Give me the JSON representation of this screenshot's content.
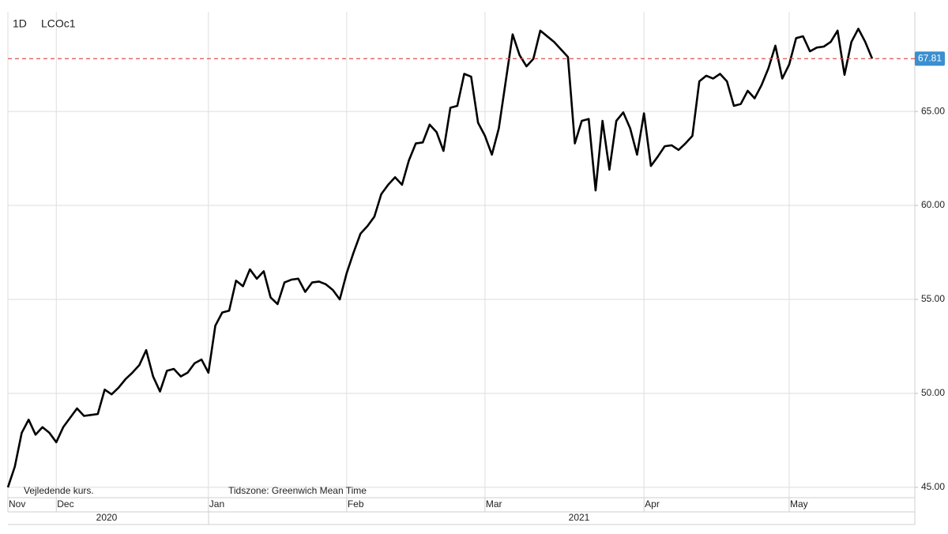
{
  "chart_data": {
    "type": "line",
    "interval": "1D",
    "symbol": "LCOc1",
    "categories": [
      "Nov",
      null,
      null,
      null,
      null,
      null,
      null,
      "Dec",
      null,
      null,
      null,
      null,
      null,
      null,
      null,
      null,
      null,
      null,
      null,
      null,
      null,
      null,
      null,
      null,
      null,
      null,
      null,
      null,
      null,
      "Jan",
      null,
      null,
      null,
      null,
      null,
      null,
      null,
      null,
      null,
      null,
      null,
      null,
      null,
      null,
      null,
      null,
      null,
      null,
      null,
      "Feb",
      null,
      null,
      null,
      null,
      null,
      null,
      null,
      null,
      null,
      null,
      null,
      null,
      null,
      null,
      null,
      null,
      null,
      null,
      null,
      "Mar",
      null,
      null,
      null,
      null,
      null,
      null,
      null,
      null,
      null,
      null,
      null,
      null,
      null,
      null,
      null,
      null,
      null,
      null,
      null,
      null,
      null,
      null,
      "Apr",
      null,
      null,
      null,
      null,
      null,
      null,
      null,
      null,
      null,
      null,
      null,
      null,
      null,
      null,
      null,
      null,
      null,
      null,
      null,
      null,
      "May",
      null,
      null,
      null,
      null,
      null,
      null,
      null,
      null,
      null,
      null,
      null,
      null
    ],
    "values": [
      45.0,
      46.1,
      47.9,
      48.6,
      47.8,
      48.2,
      47.9,
      47.4,
      48.2,
      48.7,
      49.2,
      48.8,
      48.85,
      48.9,
      50.2,
      49.95,
      50.3,
      50.75,
      51.1,
      51.5,
      52.3,
      50.9,
      50.1,
      51.2,
      51.3,
      50.9,
      51.1,
      51.6,
      51.8,
      51.1,
      53.6,
      54.3,
      54.4,
      56.0,
      55.7,
      56.6,
      56.1,
      56.5,
      55.1,
      54.75,
      55.9,
      56.05,
      56.1,
      55.4,
      55.9,
      55.95,
      55.8,
      55.5,
      55.0,
      56.4,
      57.5,
      58.5,
      58.9,
      59.4,
      60.6,
      61.1,
      61.5,
      61.1,
      62.4,
      63.3,
      63.35,
      64.3,
      63.9,
      62.9,
      65.2,
      65.3,
      67.0,
      66.85,
      64.4,
      63.7,
      62.7,
      64.1,
      66.6,
      69.1,
      68.0,
      67.4,
      67.8,
      69.3,
      69.0,
      68.7,
      68.3,
      67.9,
      63.3,
      64.5,
      64.6,
      60.8,
      64.5,
      61.9,
      64.5,
      64.95,
      64.1,
      62.7,
      64.9,
      62.1,
      62.6,
      63.15,
      63.2,
      62.95,
      63.3,
      63.7,
      66.6,
      66.9,
      66.75,
      67.0,
      66.6,
      65.3,
      65.4,
      66.1,
      65.7,
      66.4,
      67.3,
      68.5,
      66.75,
      67.5,
      68.9,
      69.0,
      68.2,
      68.4,
      68.45,
      68.7,
      69.3,
      66.95,
      68.7,
      69.4,
      68.7,
      67.81
    ],
    "color": "#000000",
    "years": [
      "2020",
      "2021"
    ],
    "ylim": [
      44.45,
      70.3
    ],
    "yticks": [
      {
        "value": 45,
        "label": "45.00"
      },
      {
        "value": 50,
        "label": "50.00"
      },
      {
        "value": 55,
        "label": "55.00"
      },
      {
        "value": 60,
        "label": "60.00"
      },
      {
        "value": 65,
        "label": "65.00"
      }
    ],
    "grid": true,
    "current_price": 67.81,
    "current_price_line_color": "#d9534f",
    "current_price_box_color": "#3a8fd1",
    "note": "Vejledende kurs.",
    "timezone": "Tidszone: Greenwich Mean Time"
  }
}
